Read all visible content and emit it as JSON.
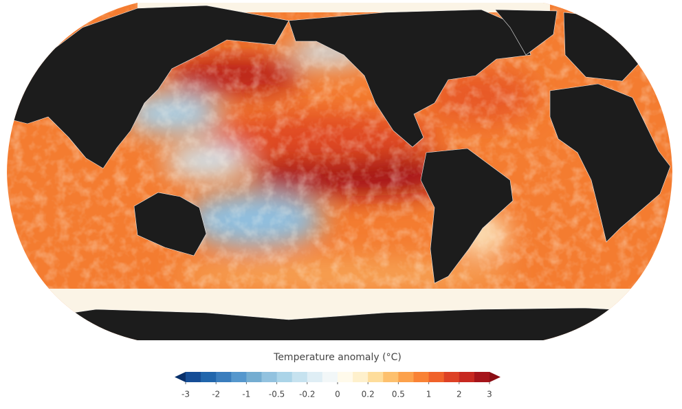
{
  "legend": {
    "title": "Temperature anomaly (°C)",
    "ticks": [
      -3,
      -2,
      -1,
      -0.5,
      -0.2,
      0,
      0.2,
      0.5,
      1,
      2,
      3
    ],
    "colors": [
      "#08306b",
      "#154d96",
      "#2166ac",
      "#3a7dbd",
      "#5597cd",
      "#74add1",
      "#92c2df",
      "#abd4e8",
      "#c6e2ef",
      "#dfeef5",
      "#f2f7f8",
      "#fffaeb",
      "#fef0cc",
      "#fedd9b",
      "#fdc06d",
      "#fca14b",
      "#f98234",
      "#f0622a",
      "#dd4125",
      "#c72820",
      "#a5141a",
      "#8b0d14"
    ]
  }
}
